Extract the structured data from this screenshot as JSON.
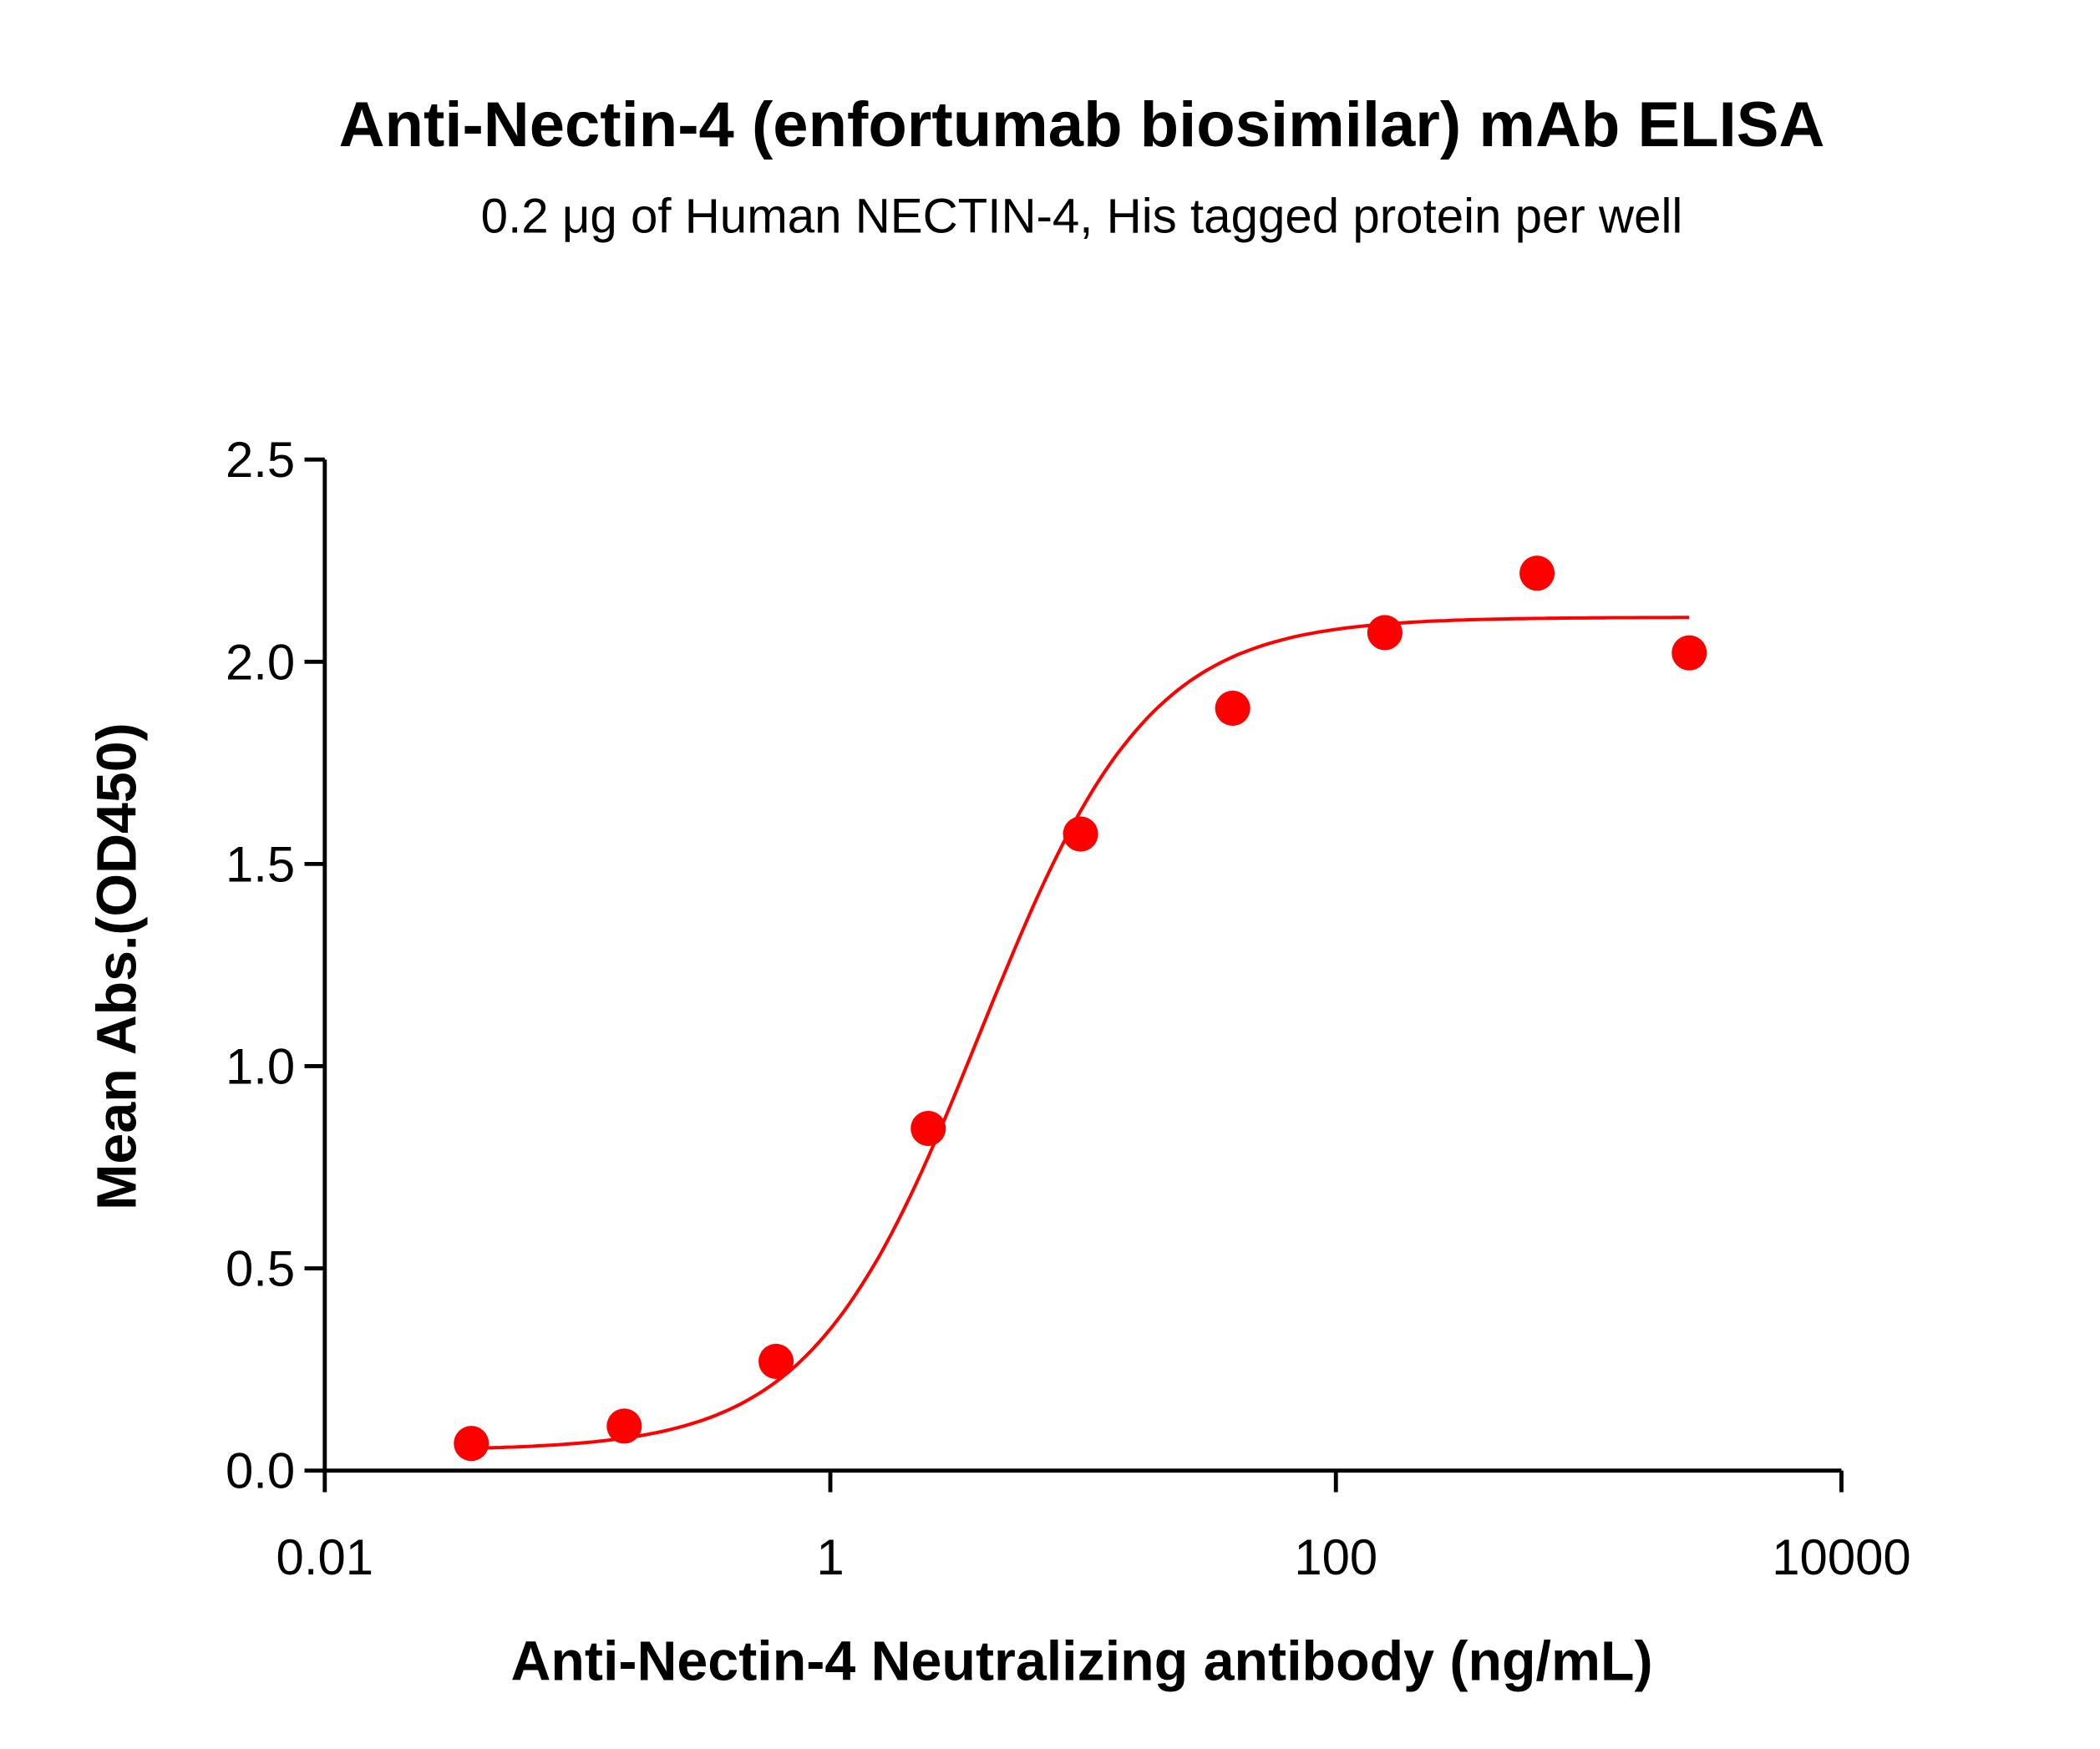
{
  "chart_data": {
    "type": "scatter",
    "title": "Anti-Nectin-4 (enfortumab biosimilar) mAb ELISA",
    "subtitle": "0.2 μg of Human NECTIN-4, His tagged protein per well",
    "xlabel": "Anti-Nectin-4 Neutralizing antibody (ng/mL)",
    "ylabel": "Mean Abs.(OD450)",
    "x_scale": "log",
    "xlim": [
      0.01,
      10000
    ],
    "ylim": [
      0,
      2.5
    ],
    "x_ticks": [
      "0.01",
      "1",
      "100",
      "10000"
    ],
    "y_ticks": [
      "0.0",
      "0.5",
      "1.0",
      "1.5",
      "2.0",
      "2.5"
    ],
    "grid": false,
    "color": "#ff0000",
    "points": {
      "x": [
        0.038,
        0.153,
        0.61,
        2.44,
        9.77,
        39.06,
        156.25,
        625,
        2500
      ],
      "y": [
        0.067,
        0.11,
        0.27,
        0.846,
        1.574,
        1.885,
        2.072,
        2.219,
        2.022
      ]
    },
    "fit": {
      "model": "4PL",
      "bottom": 0.05,
      "top": 2.11,
      "ec50": 3.9,
      "hill": 1.3
    }
  }
}
